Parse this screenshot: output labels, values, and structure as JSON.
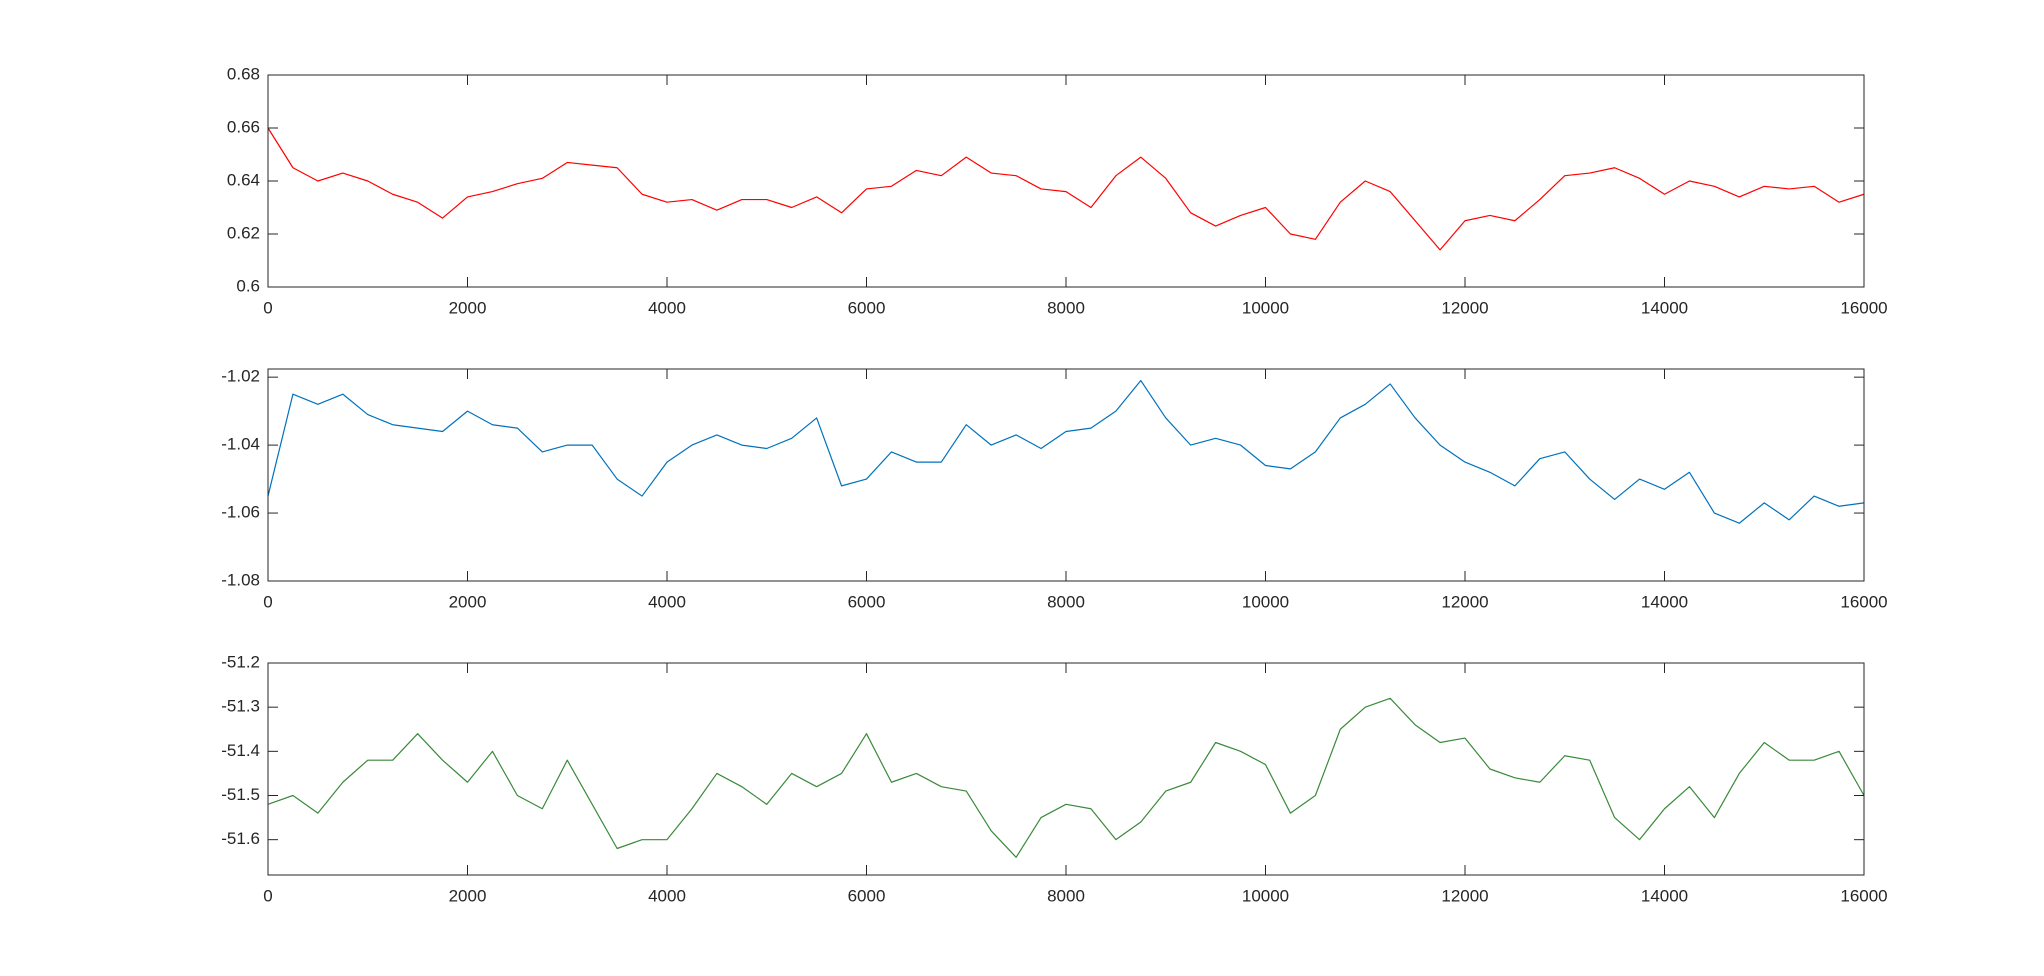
{
  "chart_data": [
    {
      "type": "line",
      "x": [
        0,
        250,
        500,
        750,
        1000,
        1250,
        1500,
        1750,
        2000,
        2250,
        2500,
        2750,
        3000,
        3250,
        3500,
        3750,
        4000,
        4250,
        4500,
        4750,
        5000,
        5250,
        5500,
        5750,
        6000,
        6250,
        6500,
        6750,
        7000,
        7250,
        7500,
        7750,
        8000,
        8250,
        8500,
        8750,
        9000,
        9250,
        9500,
        9750,
        10000,
        10250,
        10500,
        10750,
        11000,
        11250,
        11500,
        11750,
        12000,
        12250,
        12500,
        12750,
        13000,
        13250,
        13500,
        13750,
        14000,
        14250,
        14500,
        14750,
        15000,
        15250,
        15500,
        15750,
        16000
      ],
      "series": [
        {
          "color": "#ff0000",
          "values": [
            0.66,
            0.645,
            0.64,
            0.643,
            0.64,
            0.635,
            0.632,
            0.626,
            0.634,
            0.636,
            0.639,
            0.641,
            0.647,
            0.646,
            0.645,
            0.635,
            0.632,
            0.633,
            0.629,
            0.633,
            0.633,
            0.63,
            0.634,
            0.628,
            0.637,
            0.638,
            0.644,
            0.642,
            0.649,
            0.643,
            0.642,
            0.637,
            0.636,
            0.63,
            0.642,
            0.649,
            0.641,
            0.628,
            0.623,
            0.627,
            0.63,
            0.62,
            0.618,
            0.632,
            0.64,
            0.636,
            0.625,
            0.614,
            0.625,
            0.627,
            0.625,
            0.633,
            0.642,
            0.643,
            0.645,
            0.641,
            0.635,
            0.64,
            0.638,
            0.634,
            0.638,
            0.637,
            0.638,
            0.632,
            0.635
          ]
        }
      ],
      "xlim": [
        0,
        16000
      ],
      "xticks": [
        0,
        2000,
        4000,
        6000,
        8000,
        10000,
        12000,
        14000,
        16000
      ],
      "ylim": [
        0.6,
        0.68
      ],
      "yticks": [
        0.6,
        0.62,
        0.64,
        0.66,
        0.68
      ]
    },
    {
      "type": "line",
      "x": [
        0,
        250,
        500,
        750,
        1000,
        1250,
        1500,
        1750,
        2000,
        2250,
        2500,
        2750,
        3000,
        3250,
        3500,
        3750,
        4000,
        4250,
        4500,
        4750,
        5000,
        5250,
        5500,
        5750,
        6000,
        6250,
        6500,
        6750,
        7000,
        7250,
        7500,
        7750,
        8000,
        8250,
        8500,
        8750,
        9000,
        9250,
        9500,
        9750,
        10000,
        10250,
        10500,
        10750,
        11000,
        11250,
        11500,
        11750,
        12000,
        12250,
        12500,
        12750,
        13000,
        13250,
        13500,
        13750,
        14000,
        14250,
        14500,
        14750,
        15000,
        15250,
        15500,
        15750,
        16000
      ],
      "series": [
        {
          "color": "#0072bd",
          "values": [
            -1.055,
            -1.025,
            -1.028,
            -1.025,
            -1.031,
            -1.034,
            -1.035,
            -1.036,
            -1.03,
            -1.034,
            -1.035,
            -1.042,
            -1.04,
            -1.04,
            -1.05,
            -1.055,
            -1.045,
            -1.04,
            -1.037,
            -1.04,
            -1.041,
            -1.038,
            -1.032,
            -1.052,
            -1.05,
            -1.042,
            -1.045,
            -1.045,
            -1.034,
            -1.04,
            -1.037,
            -1.041,
            -1.036,
            -1.035,
            -1.03,
            -1.021,
            -1.032,
            -1.04,
            -1.038,
            -1.04,
            -1.046,
            -1.047,
            -1.042,
            -1.032,
            -1.028,
            -1.022,
            -1.032,
            -1.04,
            -1.045,
            -1.048,
            -1.052,
            -1.044,
            -1.042,
            -1.05,
            -1.056,
            -1.05,
            -1.053,
            -1.048,
            -1.06,
            -1.063,
            -1.057,
            -1.062,
            -1.055,
            -1.058,
            -1.057
          ]
        }
      ],
      "xlim": [
        0,
        16000
      ],
      "xticks": [
        0,
        2000,
        4000,
        6000,
        8000,
        10000,
        12000,
        14000,
        16000
      ],
      "ylim": [
        -1.08,
        -1.0176
      ],
      "yticks": [
        -1.08,
        -1.06,
        -1.04,
        -1.02
      ]
    },
    {
      "type": "line",
      "x": [
        0,
        250,
        500,
        750,
        1000,
        1250,
        1500,
        1750,
        2000,
        2250,
        2500,
        2750,
        3000,
        3250,
        3500,
        3750,
        4000,
        4250,
        4500,
        4750,
        5000,
        5250,
        5500,
        5750,
        6000,
        6250,
        6500,
        6750,
        7000,
        7250,
        7500,
        7750,
        8000,
        8250,
        8500,
        8750,
        9000,
        9250,
        9500,
        9750,
        10000,
        10250,
        10500,
        10750,
        11000,
        11250,
        11500,
        11750,
        12000,
        12250,
        12500,
        12750,
        13000,
        13250,
        13500,
        13750,
        14000,
        14250,
        14500,
        14750,
        15000,
        15250,
        15500,
        15750,
        16000
      ],
      "series": [
        {
          "color": "#3a8a3a",
          "values": [
            -51.52,
            -51.5,
            -51.54,
            -51.47,
            -51.42,
            -51.42,
            -51.36,
            -51.42,
            -51.47,
            -51.4,
            -51.5,
            -51.53,
            -51.42,
            -51.52,
            -51.62,
            -51.6,
            -51.6,
            -51.53,
            -51.45,
            -51.48,
            -51.52,
            -51.45,
            -51.48,
            -51.45,
            -51.36,
            -51.47,
            -51.45,
            -51.48,
            -51.49,
            -51.58,
            -51.64,
            -51.55,
            -51.52,
            -51.53,
            -51.6,
            -51.56,
            -51.49,
            -51.47,
            -51.38,
            -51.4,
            -51.43,
            -51.54,
            -51.5,
            -51.35,
            -51.3,
            -51.28,
            -51.34,
            -51.38,
            -51.37,
            -51.44,
            -51.46,
            -51.47,
            -51.41,
            -51.42,
            -51.55,
            -51.6,
            -51.53,
            -51.48,
            -51.55,
            -51.45,
            -51.38,
            -51.42,
            -51.42,
            -51.4,
            -51.5
          ]
        }
      ],
      "xlim": [
        0,
        16000
      ],
      "xticks": [
        0,
        2000,
        4000,
        6000,
        8000,
        10000,
        12000,
        14000,
        16000
      ],
      "ylim": [
        -51.68,
        -51.2
      ],
      "yticks": [
        -51.6,
        -51.5,
        -51.4,
        -51.3,
        -51.2
      ]
    }
  ]
}
